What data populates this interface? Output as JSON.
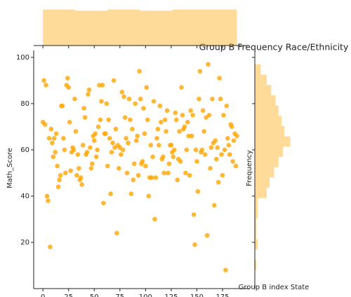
{
  "chart_data": {
    "type": "scatter",
    "title": "Group B Frequency Race/Ethnicity",
    "x_label": "Group B index State",
    "y_label": "Math_Score",
    "y2_label": "Frequency",
    "color": "#ffa500",
    "xlim": [
      -9,
      201
    ],
    "xticks": [
      0,
      25,
      50,
      75,
      100,
      125,
      150,
      175
    ],
    "ylim": [
      0,
      103
    ],
    "yticks": [
      20,
      40,
      60,
      80,
      100
    ],
    "values": [
      72,
      90,
      71,
      88,
      40,
      38,
      65,
      18,
      69,
      63,
      57,
      65,
      59,
      67,
      53,
      44,
      47,
      49,
      79,
      79,
      65,
      60,
      50,
      88,
      91,
      87,
      72,
      51,
      59,
      61,
      60,
      82,
      68,
      49,
      58,
      52,
      47,
      48,
      45,
      62,
      78,
      74,
      58,
      59,
      84,
      86,
      61,
      52,
      54,
      66,
      64,
      67,
      57,
      60,
      70,
      88,
      73,
      81,
      88,
      37,
      67,
      67,
      80,
      53,
      73,
      65,
      41,
      59,
      63,
      90,
      61,
      69,
      24,
      62,
      52,
      61,
      58,
      85,
      60,
      83,
      74,
      65,
      50,
      63,
      82,
      73,
      41,
      69,
      47,
      54,
      80,
      64,
      66,
      49,
      94,
      82,
      54,
      55,
      78,
      67,
      53,
      87,
      73,
      40,
      48,
      62,
      48,
      57,
      81,
      30,
      48,
      65,
      69,
      62,
      79,
      72,
      56,
      57,
      50,
      73,
      68,
      77,
      50,
      54,
      62,
      62,
      59,
      57,
      60,
      76,
      73,
      47,
      56,
      68,
      55,
      87,
      75,
      69,
      70,
      50,
      60,
      72,
      66,
      49,
      77,
      66,
      75,
      32,
      19,
      60,
      55,
      42,
      82,
      94,
      59,
      60,
      77,
      68,
      58,
      74,
      23,
      97,
      75,
      52,
      61,
      82,
      63,
      36,
      64,
      56,
      61,
      46,
      91,
      82,
      58,
      49,
      75,
      60,
      8,
      79,
      65,
      62,
      58,
      71,
      70,
      55,
      64,
      67,
      53,
      66
    ],
    "marginal_x": {
      "type": "histogram",
      "color": "#ffa500",
      "ylim": [
        0,
        33
      ],
      "bins": [
        0,
        31.5,
        63,
        94.5,
        126,
        157.5,
        189
      ],
      "values": [
        32,
        31,
        32,
        31,
        32,
        32
      ]
    },
    "marginal_y": {
      "type": "histogram",
      "color": "#ffa500",
      "xlim": [
        0,
        27
      ],
      "bins": [
        8,
        12.45,
        16.9,
        21.35,
        25.8,
        30.25,
        34.7,
        39.15,
        43.6,
        48.05,
        52.5,
        56.95,
        61.4,
        65.85,
        70.3,
        74.75,
        79.2,
        83.65,
        88.1,
        92.55,
        97
      ],
      "values": [
        1,
        0,
        2,
        1,
        1,
        2,
        2,
        8,
        10,
        13,
        16,
        19,
        24,
        20,
        18,
        16,
        14,
        11,
        8,
        4
      ]
    }
  }
}
